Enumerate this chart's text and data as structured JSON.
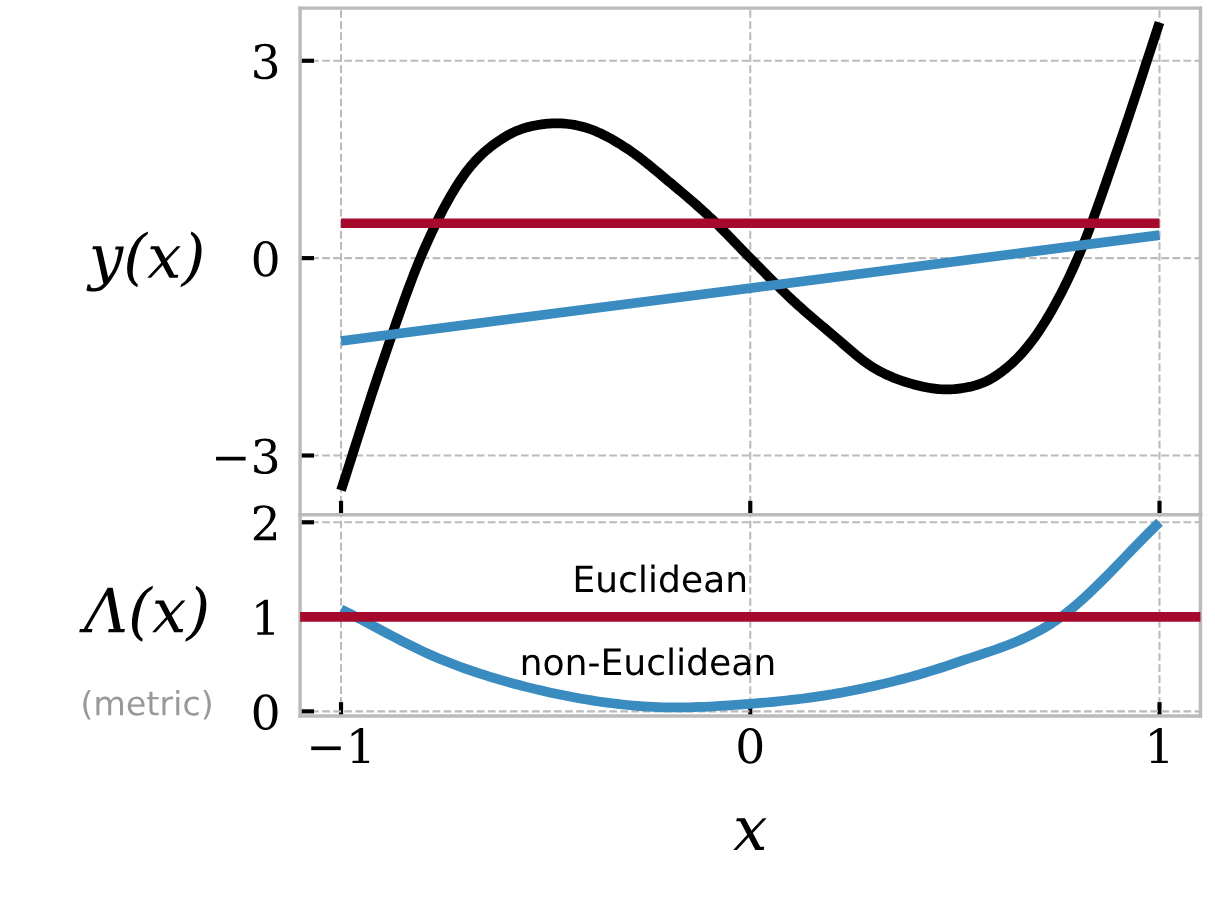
{
  "chart_data": [
    {
      "type": "line",
      "ylabel": "y(x)",
      "xlim": [
        -1.1,
        1.1
      ],
      "ylim": [
        -3.9,
        3.8
      ],
      "xticks": [
        {
          "value": -1,
          "label": null
        },
        {
          "value": 0,
          "label": null
        },
        {
          "value": 1,
          "label": null
        }
      ],
      "yticks": [
        {
          "value": -3,
          "label": "−3"
        },
        0,
        3
      ],
      "tick_labels": "y",
      "grid": true,
      "line_style": "solid",
      "marker": "none",
      "series": [
        {
          "color": "#000000",
          "x": [
            -1,
            -0.9,
            -0.8,
            -0.7,
            -0.6,
            -0.5,
            -0.4,
            -0.3,
            -0.2,
            -0.1,
            0,
            0.1,
            0.2,
            0.3,
            0.4,
            0.5,
            0.6,
            0.7,
            0.8,
            0.9,
            1
          ],
          "values": [
            -3.53,
            -1.61,
            0.09,
            1.26,
            1.84,
            2.04,
            1.98,
            1.66,
            1.17,
            0.63,
            0.0,
            -0.62,
            -1.16,
            -1.66,
            -1.92,
            -1.99,
            -1.79,
            -1.16,
            0.0,
            1.7,
            3.58
          ]
        },
        {
          "color": "#a50a2c",
          "x": [
            -1,
            1
          ],
          "values": [
            0.53,
            0.53
          ]
        },
        {
          "color": "#3a8bc0",
          "x": [
            -1,
            1
          ],
          "values": [
            -1.26,
            0.35
          ]
        }
      ]
    },
    {
      "type": "line",
      "ylabel": "Λ(x)",
      "xlabel": "x",
      "xlim": [
        -1.1,
        1.1
      ],
      "ylim": [
        -0.05,
        2.08
      ],
      "xticks": [
        {
          "value": -1,
          "label": "−1"
        },
        0,
        1
      ],
      "yticks": [
        0,
        1,
        2
      ],
      "grid": true,
      "line_style": "solid",
      "marker": "none",
      "series": [
        {
          "name": "non-Euclidean",
          "color": "#3a8bc0",
          "x": [
            -1,
            -0.75,
            -0.5,
            -0.25,
            0,
            0.25,
            0.5,
            0.75,
            1
          ],
          "values": [
            1.08,
            0.54,
            0.21,
            0.05,
            0.08,
            0.22,
            0.51,
            0.97,
            2.0
          ]
        }
      ],
      "ref_lines": [
        {
          "axis": "y",
          "value": 1,
          "label": "Euclidean",
          "color": "#a50a2c",
          "line_style": "solid"
        }
      ],
      "annotations": [
        "(metric)"
      ]
    }
  ]
}
